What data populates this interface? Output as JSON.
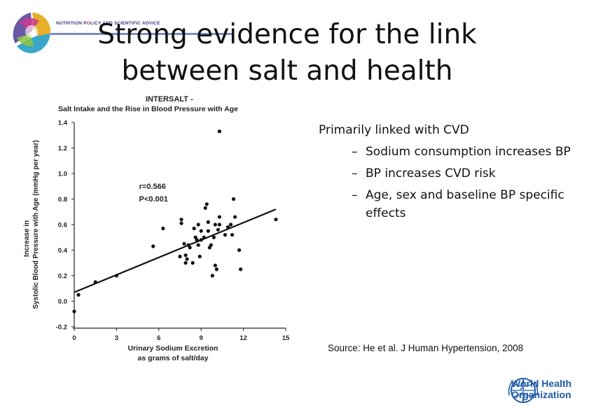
{
  "header": {
    "banner_part1": "NUTRITION P",
    "banner_part2": "LICY AND SCIENTIFIC ADVICE",
    "title": "Strong evidence for the link between salt and health"
  },
  "bullets": {
    "main": "Primarily linked with CVD",
    "subs": [
      "Sodium consumption increases BP",
      "BP increases CVD risk",
      "Age, sex and baseline BP specific effects"
    ],
    "dash": "–"
  },
  "source": "Source: He et al. J Human Hypertension, 2008",
  "who": {
    "line1": "World Health",
    "line2": "Organization"
  },
  "colors": {
    "title": "#111111",
    "who_blue": "#1e5aa8",
    "banner_blue": "#3a3a8a"
  },
  "chart_data": {
    "type": "scatter",
    "title": "INTERSALT -",
    "subtitle": "Salt Intake and the Rise in Blood Pressure with Age",
    "xlabel_line1": "Urinary Sodium Excretion",
    "xlabel_line2": "as grams of salt/day",
    "ylabel_line1": "Increase in",
    "ylabel_line2": "Systolic Blood Pressure with Age (mmHg per year)",
    "xlim": [
      0,
      15
    ],
    "ylim": [
      -0.2,
      1.4
    ],
    "xticks": [
      "0",
      "3",
      "6",
      "9",
      "12",
      "15"
    ],
    "yticks": [
      "-0.2",
      "0.0",
      "0.2",
      "0.4",
      "0.6",
      "0.8",
      "1.0",
      "1.2",
      "1.4"
    ],
    "annotation_r": "r=0.566",
    "annotation_p": "P<0.001",
    "trend": {
      "x": [
        0,
        14.3
      ],
      "y": [
        0.07,
        0.72
      ]
    },
    "points": [
      [
        0,
        -0.08
      ],
      [
        0.3,
        0.05
      ],
      [
        1.5,
        0.15
      ],
      [
        3,
        0.2
      ],
      [
        5.6,
        0.43
      ],
      [
        6.3,
        0.57
      ],
      [
        7.5,
        0.35
      ],
      [
        7.6,
        0.64
      ],
      [
        7.6,
        0.61
      ],
      [
        7.8,
        0.45
      ],
      [
        7.9,
        0.3
      ],
      [
        7.9,
        0.36
      ],
      [
        8.0,
        0.33
      ],
      [
        8.1,
        0.44
      ],
      [
        8.2,
        0.42
      ],
      [
        8.4,
        0.3
      ],
      [
        8.5,
        0.57
      ],
      [
        8.6,
        0.5
      ],
      [
        8.7,
        0.48
      ],
      [
        8.8,
        0.44
      ],
      [
        8.8,
        0.6
      ],
      [
        8.9,
        0.35
      ],
      [
        9.0,
        0.48
      ],
      [
        9.0,
        0.55
      ],
      [
        9.2,
        0.5
      ],
      [
        9.3,
        0.73
      ],
      [
        9.4,
        0.76
      ],
      [
        9.5,
        0.62
      ],
      [
        9.5,
        0.55
      ],
      [
        9.6,
        0.42
      ],
      [
        9.7,
        0.44
      ],
      [
        9.8,
        0.2
      ],
      [
        9.9,
        0.5
      ],
      [
        10.0,
        0.6
      ],
      [
        10.0,
        0.28
      ],
      [
        10.1,
        0.25
      ],
      [
        10.2,
        0.56
      ],
      [
        10.3,
        0.66
      ],
      [
        10.3,
        0.6
      ],
      [
        10.3,
        1.33
      ],
      [
        10.7,
        0.52
      ],
      [
        10.9,
        0.58
      ],
      [
        11.1,
        0.6
      ],
      [
        11.2,
        0.52
      ],
      [
        11.3,
        0.8
      ],
      [
        11.4,
        0.66
      ],
      [
        11.7,
        0.4
      ],
      [
        11.8,
        0.25
      ],
      [
        14.3,
        0.64
      ]
    ]
  }
}
